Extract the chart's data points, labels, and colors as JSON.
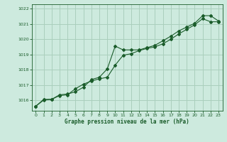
{
  "title": "Graphe pression niveau de la mer (hPa)",
  "background_color": "#cdeade",
  "grid_color": "#aacfbc",
  "line_color": "#1a5c2a",
  "xlim": [
    -0.5,
    23.5
  ],
  "ylim": [
    1015.3,
    1022.3
  ],
  "yticks": [
    1016,
    1017,
    1018,
    1019,
    1020,
    1021,
    1022
  ],
  "xticks": [
    0,
    1,
    2,
    3,
    4,
    5,
    6,
    7,
    8,
    9,
    10,
    11,
    12,
    13,
    14,
    15,
    16,
    17,
    18,
    19,
    20,
    21,
    22,
    23
  ],
  "series1_x": [
    0,
    1,
    2,
    3,
    4,
    5,
    6,
    7,
    8,
    9,
    10,
    11,
    12,
    13,
    14,
    15,
    16,
    17,
    18,
    19,
    20,
    21,
    22,
    23
  ],
  "series1_y": [
    1015.6,
    1016.05,
    1016.05,
    1016.35,
    1016.4,
    1016.55,
    1016.85,
    1017.35,
    1017.5,
    1018.05,
    1019.55,
    1019.3,
    1019.3,
    1019.3,
    1019.45,
    1019.6,
    1019.9,
    1020.2,
    1020.55,
    1020.8,
    1021.05,
    1021.55,
    1021.55,
    1021.2
  ],
  "series2_x": [
    0,
    1,
    2,
    3,
    4,
    5,
    6,
    7,
    8,
    9,
    10,
    11,
    12,
    13,
    14,
    15,
    16,
    17,
    18,
    19,
    20,
    21,
    22,
    23
  ],
  "series2_y": [
    1015.6,
    1016.0,
    1016.05,
    1016.3,
    1016.35,
    1016.75,
    1017.05,
    1017.25,
    1017.4,
    1017.5,
    1018.3,
    1018.95,
    1019.05,
    1019.25,
    1019.4,
    1019.5,
    1019.7,
    1020.0,
    1020.35,
    1020.65,
    1020.95,
    1021.35,
    1021.15,
    1021.15
  ]
}
